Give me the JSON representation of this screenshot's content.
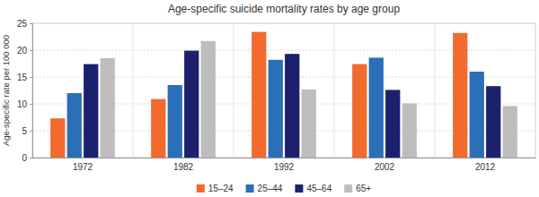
{
  "chart_data": {
    "type": "bar",
    "title": "Age-specific suicide mortality rates by age group",
    "y_label": "Age-specific rate per 100 000",
    "categories": [
      "1972",
      "1982",
      "1992",
      "2002",
      "2012"
    ],
    "series": [
      {
        "name": "15–24",
        "color": "#f26a2e",
        "values": [
          7.3,
          10.9,
          23.4,
          17.4,
          23.2
        ]
      },
      {
        "name": "25–44",
        "color": "#2b6fb8",
        "values": [
          12.0,
          13.5,
          18.2,
          18.6,
          16.0
        ]
      },
      {
        "name": "45–64",
        "color": "#1b216e",
        "values": [
          17.4,
          19.9,
          19.3,
          12.6,
          13.3
        ]
      },
      {
        "name": "65+",
        "color": "#bdbdbd",
        "values": [
          18.5,
          21.7,
          12.7,
          10.1,
          9.6
        ]
      }
    ],
    "ylim": [
      0,
      25
    ],
    "yticks": [
      0,
      5,
      10,
      15,
      20,
      25
    ],
    "grid": true,
    "legend": "bottom"
  }
}
